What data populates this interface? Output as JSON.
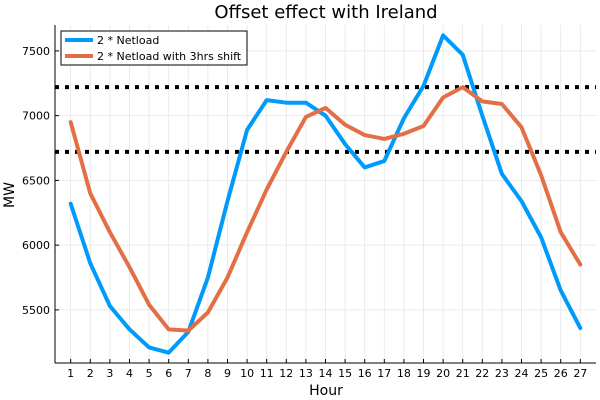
{
  "chart_data": {
    "type": "line",
    "title": "Offset effect with Ireland",
    "xlabel": "Hour",
    "ylabel": "MW",
    "x": [
      1,
      2,
      3,
      4,
      5,
      6,
      7,
      8,
      9,
      10,
      11,
      12,
      13,
      14,
      15,
      16,
      17,
      18,
      19,
      20,
      21,
      22,
      23,
      24,
      25,
      26,
      27
    ],
    "xlim": [
      0.2,
      27.8
    ],
    "ylim": [
      5090,
      7700
    ],
    "yticks": [
      5500,
      6000,
      6500,
      7000,
      7500
    ],
    "grid": true,
    "legend_position": "top-left",
    "series": [
      {
        "name": "2 * Netload",
        "color": "#009AFA",
        "values": [
          6320,
          5860,
          5530,
          5350,
          5210,
          5170,
          5330,
          5750,
          6340,
          6890,
          7120,
          7100,
          7100,
          7000,
          6780,
          6600,
          6650,
          6980,
          7230,
          7620,
          7470,
          7000,
          6550,
          6340,
          6060,
          5650,
          5360
        ]
      },
      {
        "name": "2 * Netload with 3hrs shift",
        "color": "#E26F46",
        "values": [
          6950,
          6400,
          6100,
          5830,
          5540,
          5350,
          5340,
          5480,
          5750,
          6100,
          6430,
          6720,
          6990,
          7060,
          6930,
          6850,
          6820,
          6860,
          6920,
          7140,
          7220,
          7110,
          7090,
          6910,
          6540,
          6100,
          5850
        ]
      }
    ],
    "reference_lines": [
      {
        "y": 7220,
        "style": "dotted",
        "color": "#000000"
      },
      {
        "y": 6720,
        "style": "dotted",
        "color": "#000000"
      }
    ]
  }
}
